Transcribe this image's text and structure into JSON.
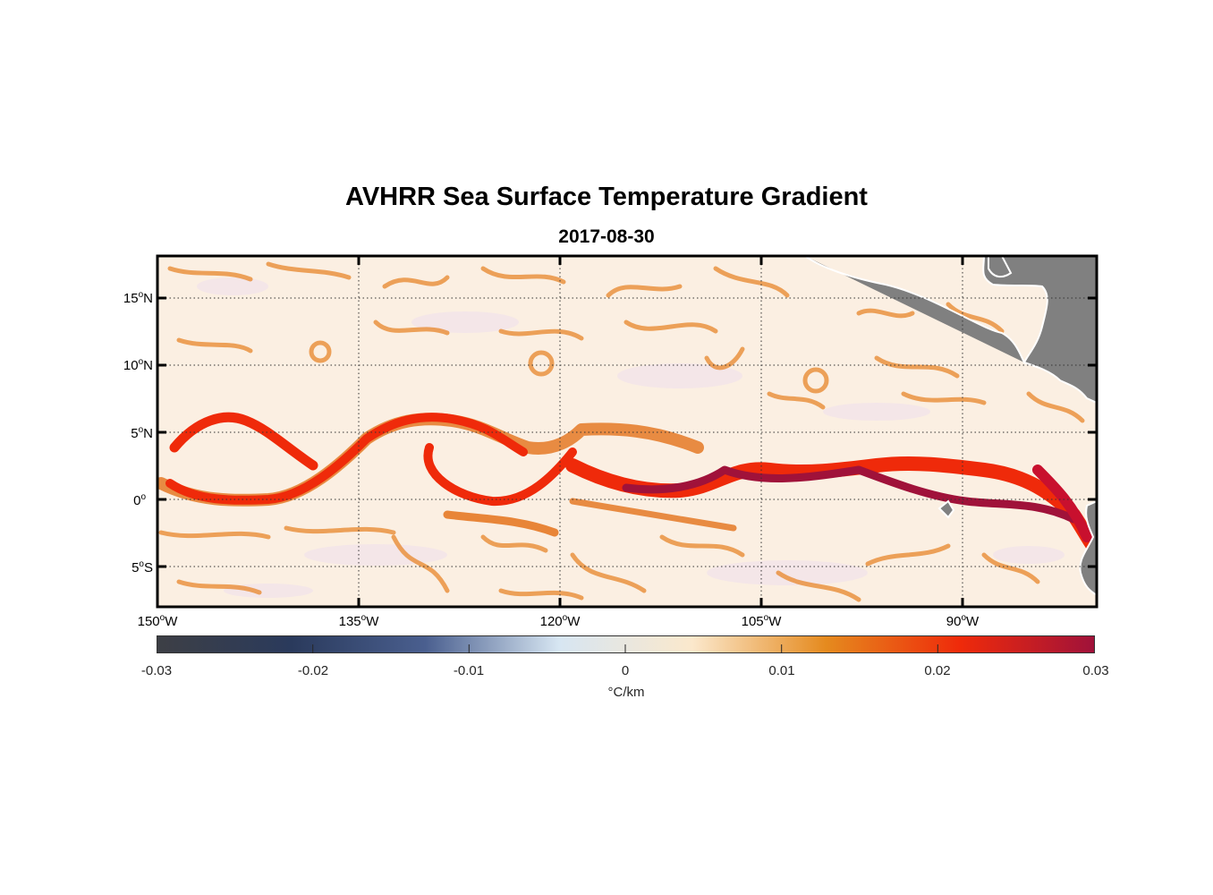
{
  "figure": {
    "title": "AVHRR Sea Surface Temperature Gradient",
    "subtitle": "2017-08-30"
  },
  "map": {
    "lon_range": [
      -150,
      -80
    ],
    "lat_range": [
      -8,
      18
    ],
    "lat_ticks": [
      {
        "value": 15,
        "num": "15",
        "deg": "o",
        "hemi": "N"
      },
      {
        "value": 10,
        "num": "10",
        "deg": "o",
        "hemi": "N"
      },
      {
        "value": 5,
        "num": "5",
        "deg": "o",
        "hemi": "N"
      },
      {
        "value": 0,
        "num": "0",
        "deg": "o",
        "hemi": ""
      },
      {
        "value": -5,
        "num": "5",
        "deg": "o",
        "hemi": "S"
      }
    ],
    "lon_ticks": [
      {
        "value": -150,
        "num": "150",
        "deg": "o",
        "hemi": "W"
      },
      {
        "value": -135,
        "num": "135",
        "deg": "o",
        "hemi": "W"
      },
      {
        "value": -120,
        "num": "120",
        "deg": "o",
        "hemi": "W"
      },
      {
        "value": -105,
        "num": "105",
        "deg": "o",
        "hemi": "W"
      },
      {
        "value": -90,
        "num": "90",
        "deg": "o",
        "hemi": "W"
      }
    ],
    "grid": true,
    "land_color": "#808080",
    "ocean_background_color": "#fbefe2"
  },
  "colorbar": {
    "range": [
      -0.03,
      0.03
    ],
    "ticks": [
      "-0.03",
      "-0.02",
      "-0.01",
      "0",
      "0.01",
      "0.02",
      "0.03"
    ],
    "unit": "°C/km",
    "colors": [
      "#3d3f45",
      "#2a3a5c",
      "#4a5f8f",
      "#d7e6f2",
      "#fbe8cc",
      "#e58a1e",
      "#ef2a0a",
      "#a0123a"
    ]
  }
}
